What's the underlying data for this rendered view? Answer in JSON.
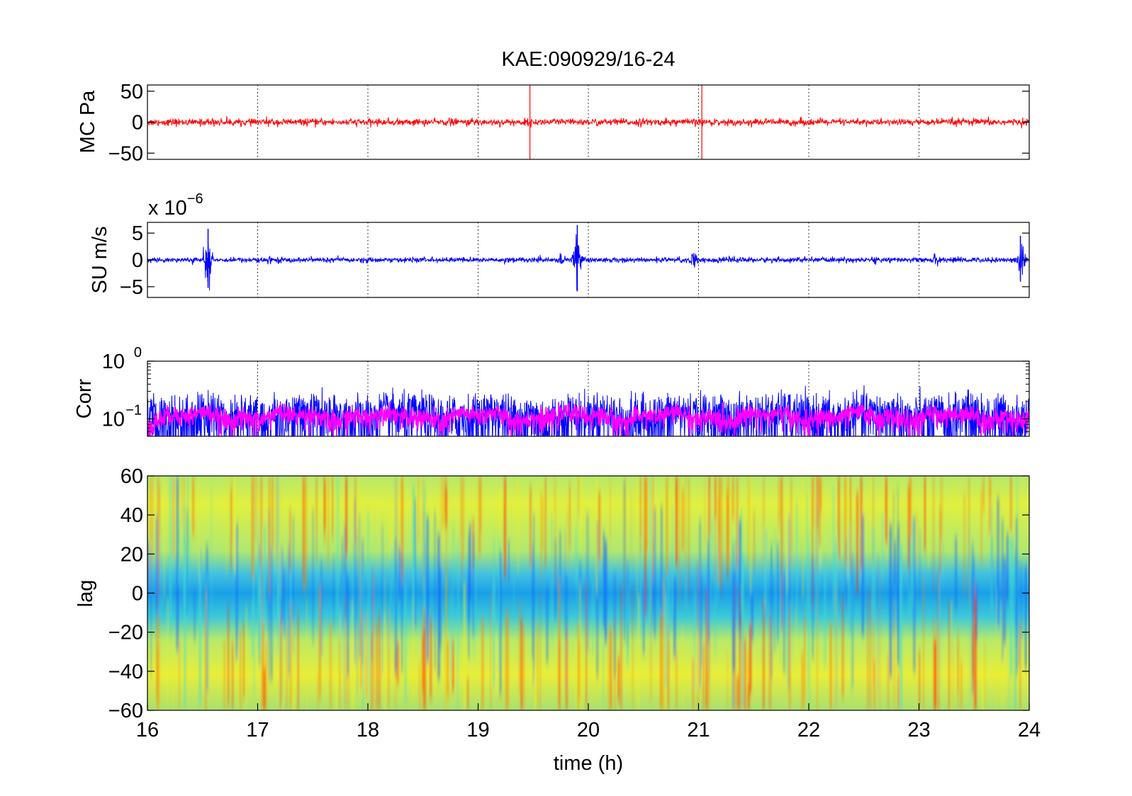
{
  "chart_data": [
    {
      "type": "line",
      "title": "KAE:090929/16-24",
      "ylabel": "MC Pa",
      "xlim": [
        16,
        24
      ],
      "ylim": [
        -60,
        60
      ],
      "yticks": [
        50,
        0,
        -50
      ],
      "grid": "x-dotted",
      "series": [
        {
          "color": "#ff0000",
          "baseline": 0,
          "noise_amplitude": 2.5,
          "spikes": [
            {
              "x": 19.47,
              "min": -60,
              "max": 60
            },
            {
              "x": 21.03,
              "min": -60,
              "max": 60
            }
          ]
        }
      ]
    },
    {
      "type": "line",
      "ylabel": "SU m/s",
      "multiplier": "x 10",
      "multiplier_exp": "−6",
      "xlim": [
        16,
        24
      ],
      "ylim": [
        -7,
        7
      ],
      "yticks": [
        5,
        0,
        -5
      ],
      "grid": "x-dotted",
      "series": [
        {
          "color": "#0000ff",
          "baseline": 0,
          "noise_amplitude": 0.4,
          "bursts": [
            {
              "x": 16.4,
              "amp": 0.8
            },
            {
              "x": 16.55,
              "amp": 5.8
            },
            {
              "x": 17.0,
              "amp": 0.9
            },
            {
              "x": 17.1,
              "amp": 1.5
            },
            {
              "x": 17.95,
              "amp": 1.2
            },
            {
              "x": 18.6,
              "amp": 0.8
            },
            {
              "x": 19.4,
              "amp": 0.8
            },
            {
              "x": 19.75,
              "amp": 2.0
            },
            {
              "x": 19.9,
              "amp": 6.5
            },
            {
              "x": 20.7,
              "amp": 1.0
            },
            {
              "x": 20.95,
              "amp": 2.0
            },
            {
              "x": 21.3,
              "amp": 0.9
            },
            {
              "x": 22.05,
              "amp": 0.8
            },
            {
              "x": 22.6,
              "amp": 1.0
            },
            {
              "x": 23.15,
              "amp": 1.5
            },
            {
              "x": 23.92,
              "amp": 4.5
            }
          ]
        }
      ]
    },
    {
      "type": "line",
      "ylabel": "Corr",
      "yscale": "log",
      "xlim": [
        16,
        24
      ],
      "ylim": [
        0.05,
        1.0
      ],
      "yticks": [
        {
          "base": "10",
          "exp": "0",
          "value": 1.0
        },
        {
          "base": "10",
          "exp": "−1",
          "value": 0.1
        }
      ],
      "grid": "x-dotted",
      "series": [
        {
          "color": "#0000ff",
          "level": 0.11,
          "spread": 0.14
        },
        {
          "color": "#ff00ff",
          "level": 0.11,
          "spread": 0.05
        }
      ]
    },
    {
      "type": "heatmap",
      "ylabel": "lag",
      "xlabel": "time (h)",
      "xlim": [
        16,
        24
      ],
      "ylim": [
        -60,
        60
      ],
      "xticks": [
        16,
        17,
        18,
        19,
        20,
        21,
        22,
        23,
        24
      ],
      "yticks": [
        60,
        40,
        20,
        0,
        -20,
        -40,
        -60
      ],
      "colormap": "jet",
      "description_values": {
        "center_lag_low": 0,
        "outer_lag_high": 40
      }
    }
  ]
}
